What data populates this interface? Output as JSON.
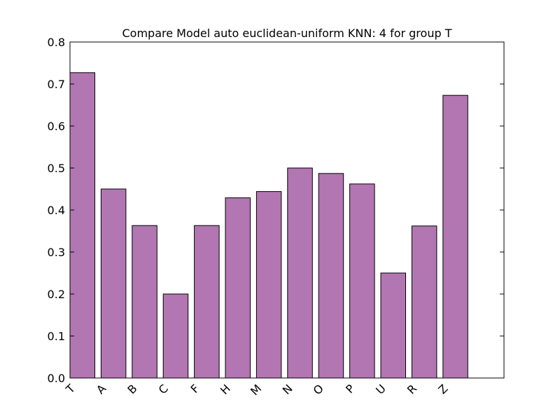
{
  "chart_data": {
    "type": "bar",
    "title": "Compare Model auto euclidean-uniform KNN: 4 for group T",
    "xlabel": "",
    "ylabel": "",
    "categories": [
      "T",
      "A",
      "B",
      "C",
      "F",
      "H",
      "M",
      "N",
      "O",
      "P",
      "U",
      "R",
      "Z"
    ],
    "values": [
      0.727,
      0.45,
      0.363,
      0.2,
      0.363,
      0.429,
      0.444,
      0.5,
      0.487,
      0.462,
      0.25,
      0.362,
      0.673
    ],
    "ylim": [
      0,
      0.8
    ],
    "yticks": [
      "0.0",
      "0.1",
      "0.2",
      "0.3",
      "0.4",
      "0.5",
      "0.6",
      "0.7",
      "0.8"
    ],
    "bar_color": "#b276b2",
    "edge_color": "#000000",
    "grid": false,
    "xtick_rotation": "45 degrees"
  }
}
